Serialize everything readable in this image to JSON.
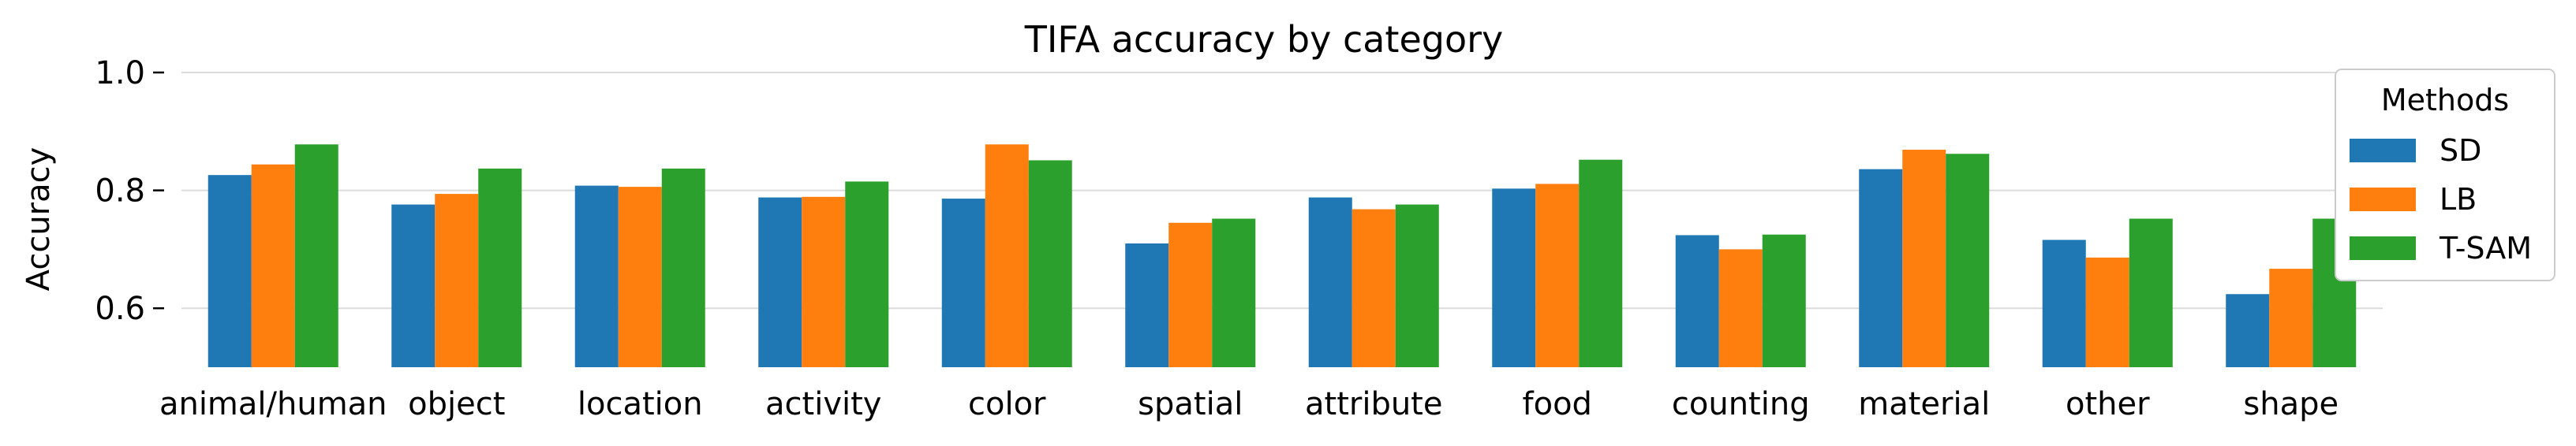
{
  "chart_data": {
    "type": "bar",
    "title": "TIFA accuracy by category",
    "xlabel": "",
    "ylabel": "Accuracy",
    "ylim": [
      0.5,
      1.0
    ],
    "yticks": [
      0.6,
      0.8,
      1.0
    ],
    "ytick_labels": [
      "0.6",
      "0.8",
      "1.0"
    ],
    "grid": "y",
    "legend": {
      "title": "Methods",
      "placement": "right"
    },
    "categories": [
      "animal/human",
      "object",
      "location",
      "activity",
      "color",
      "spatial",
      "attribute",
      "food",
      "counting",
      "material",
      "other",
      "shape"
    ],
    "series": [
      {
        "name": "SD",
        "color": "#1f77b4",
        "values": [
          0.826,
          0.776,
          0.808,
          0.788,
          0.786,
          0.71,
          0.788,
          0.803,
          0.724,
          0.836,
          0.716,
          0.624
        ]
      },
      {
        "name": "LB",
        "color": "#ff7f0e",
        "values": [
          0.844,
          0.794,
          0.806,
          0.789,
          0.878,
          0.745,
          0.768,
          0.811,
          0.7,
          0.869,
          0.686,
          0.667
        ]
      },
      {
        "name": "T-SAM",
        "color": "#2ca02c",
        "values": [
          0.878,
          0.837,
          0.837,
          0.815,
          0.851,
          0.752,
          0.776,
          0.852,
          0.725,
          0.862,
          0.752,
          0.752
        ]
      }
    ]
  }
}
